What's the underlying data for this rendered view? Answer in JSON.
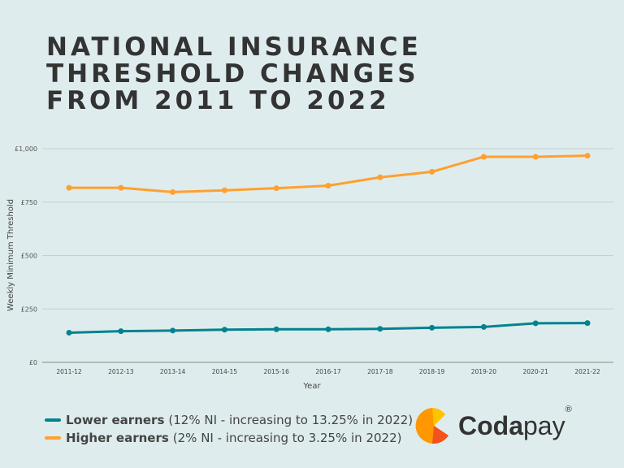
{
  "title_lines": [
    "NATIONAL INSURANCE",
    "THRESHOLD CHANGES",
    "FROM 2011 TO 2022"
  ],
  "chart_data": {
    "type": "line",
    "xlabel": "Year",
    "ylabel": "Weekly Minimum  Threshold",
    "ylim": [
      0,
      1000
    ],
    "yticks": [
      0,
      250,
      500,
      750,
      1000
    ],
    "ytick_labels": [
      "£0",
      "£250",
      "£500",
      "£750",
      "£1,000"
    ],
    "grid": true,
    "categories": [
      "2011-12",
      "2012-13",
      "2013-14",
      "2014-15",
      "2015-16",
      "2016-17",
      "2017-18",
      "2018-19",
      "2019-20",
      "2020-21",
      "2021-22"
    ],
    "series": [
      {
        "name": "Lower earners",
        "color": "#00838f",
        "values": [
          139,
          146,
          149,
          153,
          155,
          155,
          157,
          162,
          166,
          183,
          184
        ]
      },
      {
        "name": "Higher earners",
        "color": "#ffa030",
        "values": [
          817,
          817,
          797,
          805,
          815,
          827,
          866,
          892,
          962,
          962,
          967
        ]
      }
    ]
  },
  "legend": [
    {
      "bold": "Lower earners",
      "rest": "(12% NI - increasing to 13.25% in 2022)",
      "color": "#00838f"
    },
    {
      "bold": "Higher earners",
      "rest": "(2% NI - increasing to 3.25% in 2022)",
      "color": "#ffa030"
    }
  ],
  "logo": {
    "text_bold": "Coda",
    "text_light": "pay",
    "mark": "®"
  }
}
